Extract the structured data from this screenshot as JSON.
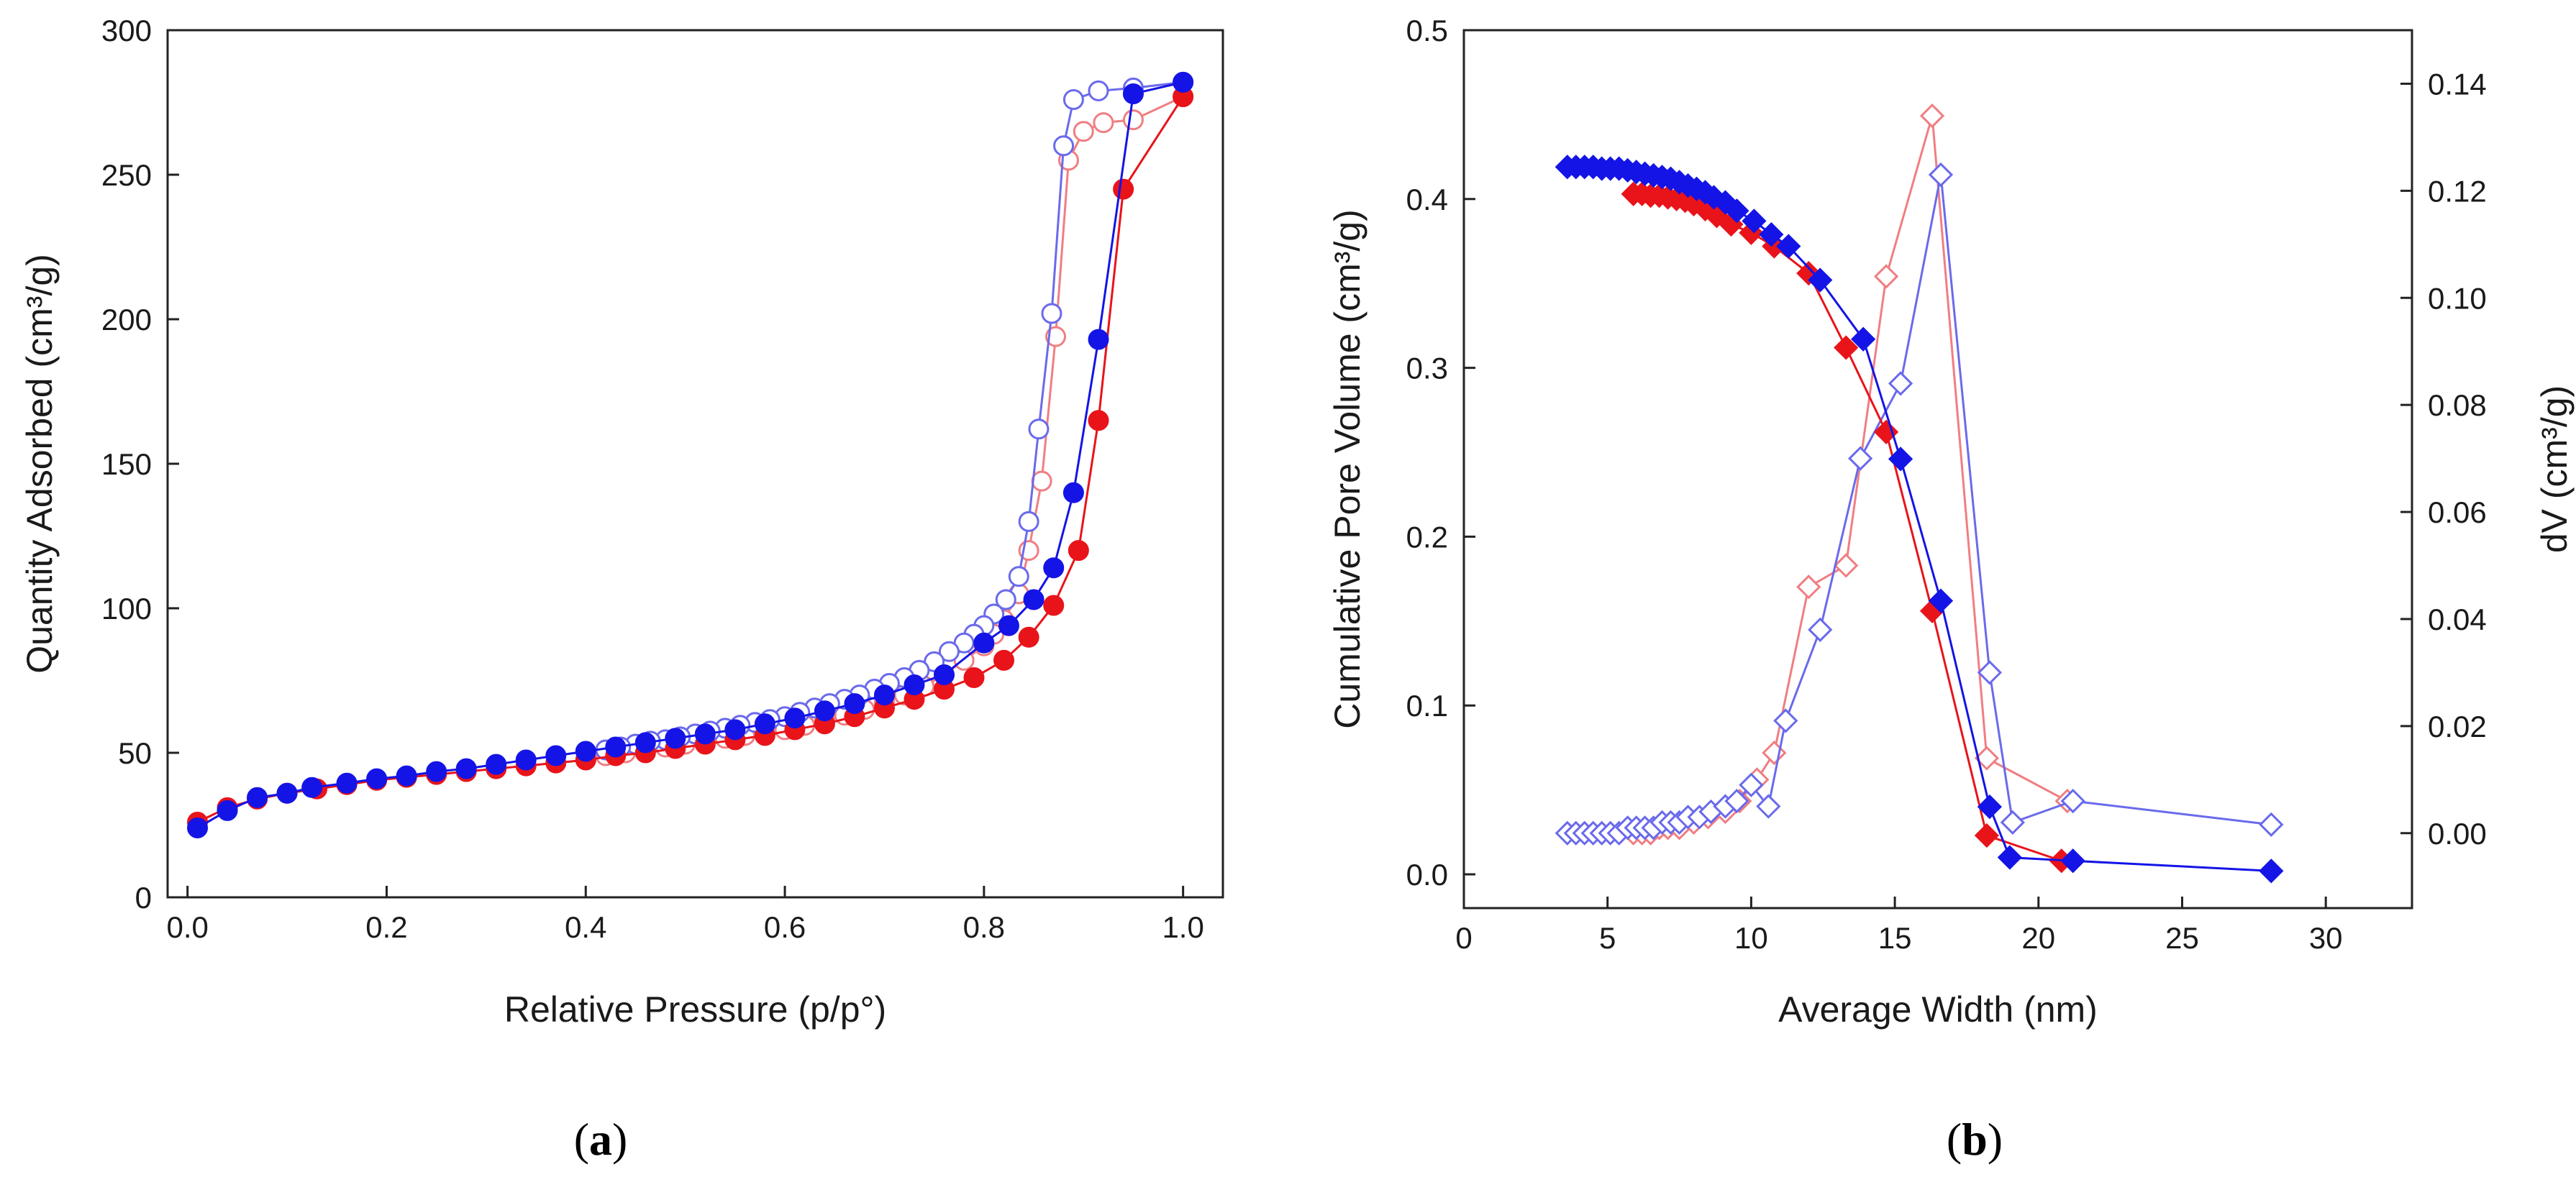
{
  "chart_data": [
    {
      "type": "scatter",
      "panel": "a",
      "xlabel": "Relative Pressure (p/p°)",
      "ylabel": "Quantity Adsorbed (cm³/g)",
      "xlim": [
        -0.02,
        1.04
      ],
      "ylim": [
        0,
        300
      ],
      "xticks": [
        "0.0",
        "0.2",
        "0.4",
        "0.6",
        "0.8",
        "1.0"
      ],
      "yticks": [
        "0",
        "50",
        "100",
        "150",
        "200",
        "250",
        "300"
      ],
      "grid": false,
      "series": [
        {
          "name": "red adsorption",
          "color": "#e8141a",
          "fill": "solid",
          "x": [
            0.01,
            0.04,
            0.07,
            0.1,
            0.13,
            0.16,
            0.19,
            0.22,
            0.25,
            0.28,
            0.31,
            0.34,
            0.37,
            0.4,
            0.43,
            0.46,
            0.49,
            0.52,
            0.55,
            0.58,
            0.61,
            0.64,
            0.67,
            0.7,
            0.73,
            0.76,
            0.79,
            0.82,
            0.845,
            0.87,
            0.895,
            0.915,
            0.94,
            1.0
          ],
          "y": [
            26,
            31,
            34,
            36,
            37.5,
            39,
            40.5,
            41.5,
            42.5,
            43.5,
            44.5,
            45.5,
            46.5,
            47.5,
            49,
            50,
            51.5,
            53,
            54.5,
            56,
            58,
            60,
            62.5,
            65.5,
            68.5,
            72,
            76,
            82,
            90,
            101,
            120,
            165,
            245,
            277
          ]
        },
        {
          "name": "red desorption",
          "color": "#f07e82",
          "fill": "open",
          "x": [
            1.0,
            0.95,
            0.92,
            0.9,
            0.885,
            0.872,
            0.858,
            0.845,
            0.835,
            0.82,
            0.81,
            0.8,
            0.78,
            0.76,
            0.74,
            0.72,
            0.7,
            0.68,
            0.66,
            0.64,
            0.62,
            0.6,
            0.58,
            0.56,
            0.54,
            0.52,
            0.5,
            0.48,
            0.46,
            0.44,
            0.42
          ],
          "y": [
            277,
            269,
            268,
            265,
            255,
            194,
            144,
            120,
            105,
            96,
            91,
            87,
            82,
            77,
            73,
            70,
            67.5,
            65,
            63,
            61,
            59.5,
            58,
            57,
            56,
            55,
            54,
            53,
            52,
            51,
            50,
            49
          ]
        },
        {
          "name": "blue adsorption",
          "color": "#1414e6",
          "fill": "solid",
          "x": [
            0.01,
            0.04,
            0.07,
            0.1,
            0.125,
            0.16,
            0.19,
            0.22,
            0.25,
            0.28,
            0.31,
            0.34,
            0.37,
            0.4,
            0.43,
            0.46,
            0.49,
            0.52,
            0.55,
            0.58,
            0.61,
            0.64,
            0.67,
            0.7,
            0.73,
            0.76,
            0.8,
            0.825,
            0.85,
            0.87,
            0.89,
            0.915,
            0.95,
            1.0
          ],
          "y": [
            24,
            30,
            34.5,
            36,
            38,
            39.5,
            41,
            42,
            43.5,
            44.5,
            46,
            47.5,
            49,
            50.5,
            52,
            53.5,
            55,
            56.5,
            58,
            60,
            62,
            64.5,
            67,
            70,
            73.5,
            77,
            88,
            94,
            103,
            114,
            140,
            193,
            278,
            282
          ]
        },
        {
          "name": "blue desorption",
          "color": "#6a6aec",
          "fill": "open",
          "x": [
            1.0,
            0.95,
            0.915,
            0.89,
            0.88,
            0.868,
            0.855,
            0.845,
            0.835,
            0.822,
            0.81,
            0.8,
            0.79,
            0.78,
            0.765,
            0.75,
            0.735,
            0.72,
            0.705,
            0.69,
            0.675,
            0.66,
            0.645,
            0.63,
            0.615,
            0.6,
            0.585,
            0.57,
            0.555,
            0.54,
            0.525,
            0.51,
            0.495,
            0.48,
            0.465,
            0.45,
            0.435,
            0.42
          ],
          "y": [
            282,
            280,
            279,
            276,
            260,
            202,
            162,
            130,
            111,
            103,
            98,
            94,
            91,
            88,
            85,
            81.5,
            78.5,
            76,
            74,
            72,
            70,
            68.5,
            67,
            65.5,
            64,
            62.5,
            61.5,
            60.5,
            59.5,
            58.5,
            57.5,
            56.5,
            55.5,
            54.5,
            54,
            53,
            52,
            51
          ]
        }
      ]
    },
    {
      "type": "scatter",
      "panel": "b",
      "xlabel": "Average Width (nm)",
      "ylabel": "Cumulative Pore Volume (cm³/g)",
      "y2label": "dV (cm³/g)",
      "xlim": [
        0,
        33
      ],
      "ylim": [
        -0.02,
        0.5
      ],
      "y2lim": [
        -0.014,
        0.15
      ],
      "xticks": [
        "0",
        "5",
        "10",
        "15",
        "20",
        "25",
        "30"
      ],
      "yticks": [
        "0.0",
        "0.1",
        "0.2",
        "0.3",
        "0.4",
        "0.5"
      ],
      "y2ticks": [
        "0.00",
        "0.02",
        "0.04",
        "0.06",
        "0.08",
        "0.10",
        "0.12",
        "0.14"
      ],
      "grid": false,
      "series": [
        {
          "name": "red cumulative",
          "color": "#e8141a",
          "fill": "solid",
          "axis": "left",
          "x": [
            5.9,
            6.2,
            6.5,
            6.8,
            7.1,
            7.4,
            7.7,
            8.0,
            8.4,
            8.8,
            9.3,
            10.0,
            10.8,
            12.0,
            13.3,
            14.7,
            16.3,
            18.2,
            20.8
          ],
          "y": [
            0.403,
            0.403,
            0.402,
            0.402,
            0.401,
            0.4,
            0.399,
            0.397,
            0.394,
            0.39,
            0.385,
            0.38,
            0.372,
            0.356,
            0.312,
            0.262,
            0.156,
            0.023,
            0.008
          ]
        },
        {
          "name": "blue cumulative",
          "color": "#1414e6",
          "fill": "solid",
          "axis": "left",
          "x": [
            3.6,
            3.9,
            4.2,
            4.5,
            4.8,
            5.1,
            5.4,
            5.7,
            6.0,
            6.3,
            6.6,
            6.9,
            7.2,
            7.5,
            7.8,
            8.1,
            8.4,
            8.7,
            9.1,
            9.5,
            10.1,
            10.7,
            11.3,
            12.4,
            13.9,
            15.2,
            16.6,
            18.3,
            19.0,
            21.2,
            28.1
          ],
          "y": [
            0.419,
            0.419,
            0.419,
            0.419,
            0.418,
            0.418,
            0.418,
            0.417,
            0.416,
            0.415,
            0.414,
            0.413,
            0.412,
            0.41,
            0.408,
            0.406,
            0.404,
            0.401,
            0.398,
            0.393,
            0.387,
            0.379,
            0.372,
            0.352,
            0.317,
            0.246,
            0.162,
            0.04,
            0.01,
            0.008,
            0.002
          ]
        },
        {
          "name": "red dV",
          "color": "#f07e82",
          "fill": "open",
          "axis": "right",
          "x": [
            5.9,
            6.2,
            6.5,
            6.8,
            7.1,
            7.5,
            8.0,
            8.5,
            9.1,
            9.6,
            10.2,
            10.8,
            12.0,
            13.3,
            14.7,
            16.3,
            18.2,
            21.0
          ],
          "y": [
            0.0,
            0.0,
            0.0,
            0.001,
            0.001,
            0.001,
            0.002,
            0.003,
            0.004,
            0.006,
            0.01,
            0.015,
            0.046,
            0.05,
            0.104,
            0.134,
            0.014,
            0.006
          ]
        },
        {
          "name": "blue dV",
          "color": "#6a6aec",
          "fill": "open",
          "axis": "right",
          "x": [
            3.6,
            3.9,
            4.2,
            4.5,
            4.8,
            5.1,
            5.4,
            5.7,
            6.0,
            6.3,
            6.6,
            6.9,
            7.2,
            7.5,
            7.8,
            8.2,
            8.6,
            9.1,
            9.5,
            10.0,
            10.6,
            11.2,
            12.4,
            13.8,
            15.2,
            16.6,
            18.3,
            19.1,
            21.2,
            28.1
          ],
          "y": [
            0.0,
            0.0,
            0.0,
            0.0,
            0.0,
            0.0,
            0.0,
            0.001,
            0.001,
            0.001,
            0.001,
            0.002,
            0.002,
            0.002,
            0.003,
            0.003,
            0.004,
            0.005,
            0.006,
            0.009,
            0.005,
            0.021,
            0.038,
            0.07,
            0.084,
            0.123,
            0.03,
            0.002,
            0.006,
            0.0016
          ]
        }
      ]
    }
  ],
  "labels": {
    "a_open": "(",
    "a_letter": "a",
    "a_close": ")",
    "b_open": "(",
    "b_letter": "b",
    "b_close": ")"
  }
}
